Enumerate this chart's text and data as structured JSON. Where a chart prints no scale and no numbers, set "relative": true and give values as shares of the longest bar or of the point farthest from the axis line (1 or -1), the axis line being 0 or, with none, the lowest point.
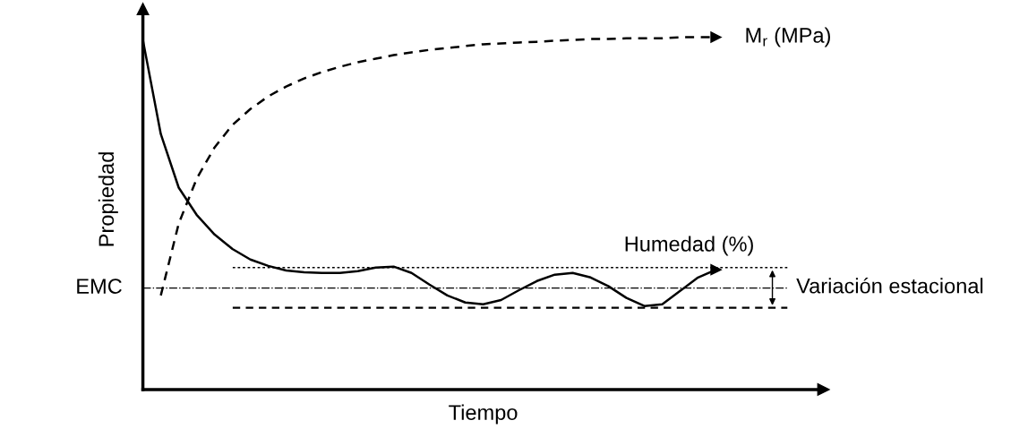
{
  "chart_data": {
    "type": "line",
    "relative": true,
    "xlabel": "Tiempo",
    "ylabel": "Propiedad",
    "categories": [
      null,
      null,
      null,
      null,
      null,
      null,
      null,
      null,
      null,
      null,
      null,
      null,
      null,
      null,
      null,
      null,
      null,
      null,
      null,
      null,
      null,
      null,
      null,
      null,
      null,
      null,
      null,
      null,
      null,
      null,
      null,
      null,
      null,
      null,
      null,
      null,
      null,
      null,
      null
    ],
    "series": [
      {
        "name": "Humedad (%)",
        "color": "#000000",
        "line_style": "solid",
        "values": [
          0.992,
          0.725,
          0.573,
          0.496,
          0.44,
          0.399,
          0.369,
          0.351,
          0.338,
          0.333,
          0.331,
          0.331,
          0.336,
          0.346,
          0.349,
          0.331,
          0.298,
          0.267,
          0.247,
          0.242,
          0.254,
          0.282,
          0.308,
          0.326,
          0.331,
          0.318,
          0.293,
          0.26,
          0.237,
          0.242,
          0.28,
          0.318,
          0.34,
          null,
          null,
          null,
          null,
          null,
          null
        ]
      },
      {
        "name": "M$_{r}$ (MPa)",
        "color": "#000000",
        "line_style": "dashed",
        "values": [
          null,
          0.267,
          0.471,
          0.598,
          0.687,
          0.751,
          0.796,
          0.832,
          0.86,
          0.883,
          0.901,
          0.916,
          0.929,
          0.939,
          0.949,
          0.957,
          0.964,
          0.969,
          0.975,
          0.98,
          0.982,
          0.985,
          0.987,
          0.99,
          0.992,
          0.995,
          0.995,
          0.997,
          0.997,
          0.997,
          1,
          1,
          1,
          null,
          null,
          null,
          null,
          null,
          null
        ]
      }
    ],
    "ref_lines": [
      {
        "axis": "y",
        "value": 0.288,
        "label": "EMC",
        "color": "#000000",
        "line_style": "dashdot"
      },
      {
        "axis": "y",
        "value": 0.346,
        "color": "#000000",
        "line_style": "dotted"
      },
      {
        "axis": "y",
        "value": 0.232,
        "color": "#000000",
        "line_style": "dashed"
      }
    ],
    "annotations": [
      "Variación estacional"
    ]
  }
}
